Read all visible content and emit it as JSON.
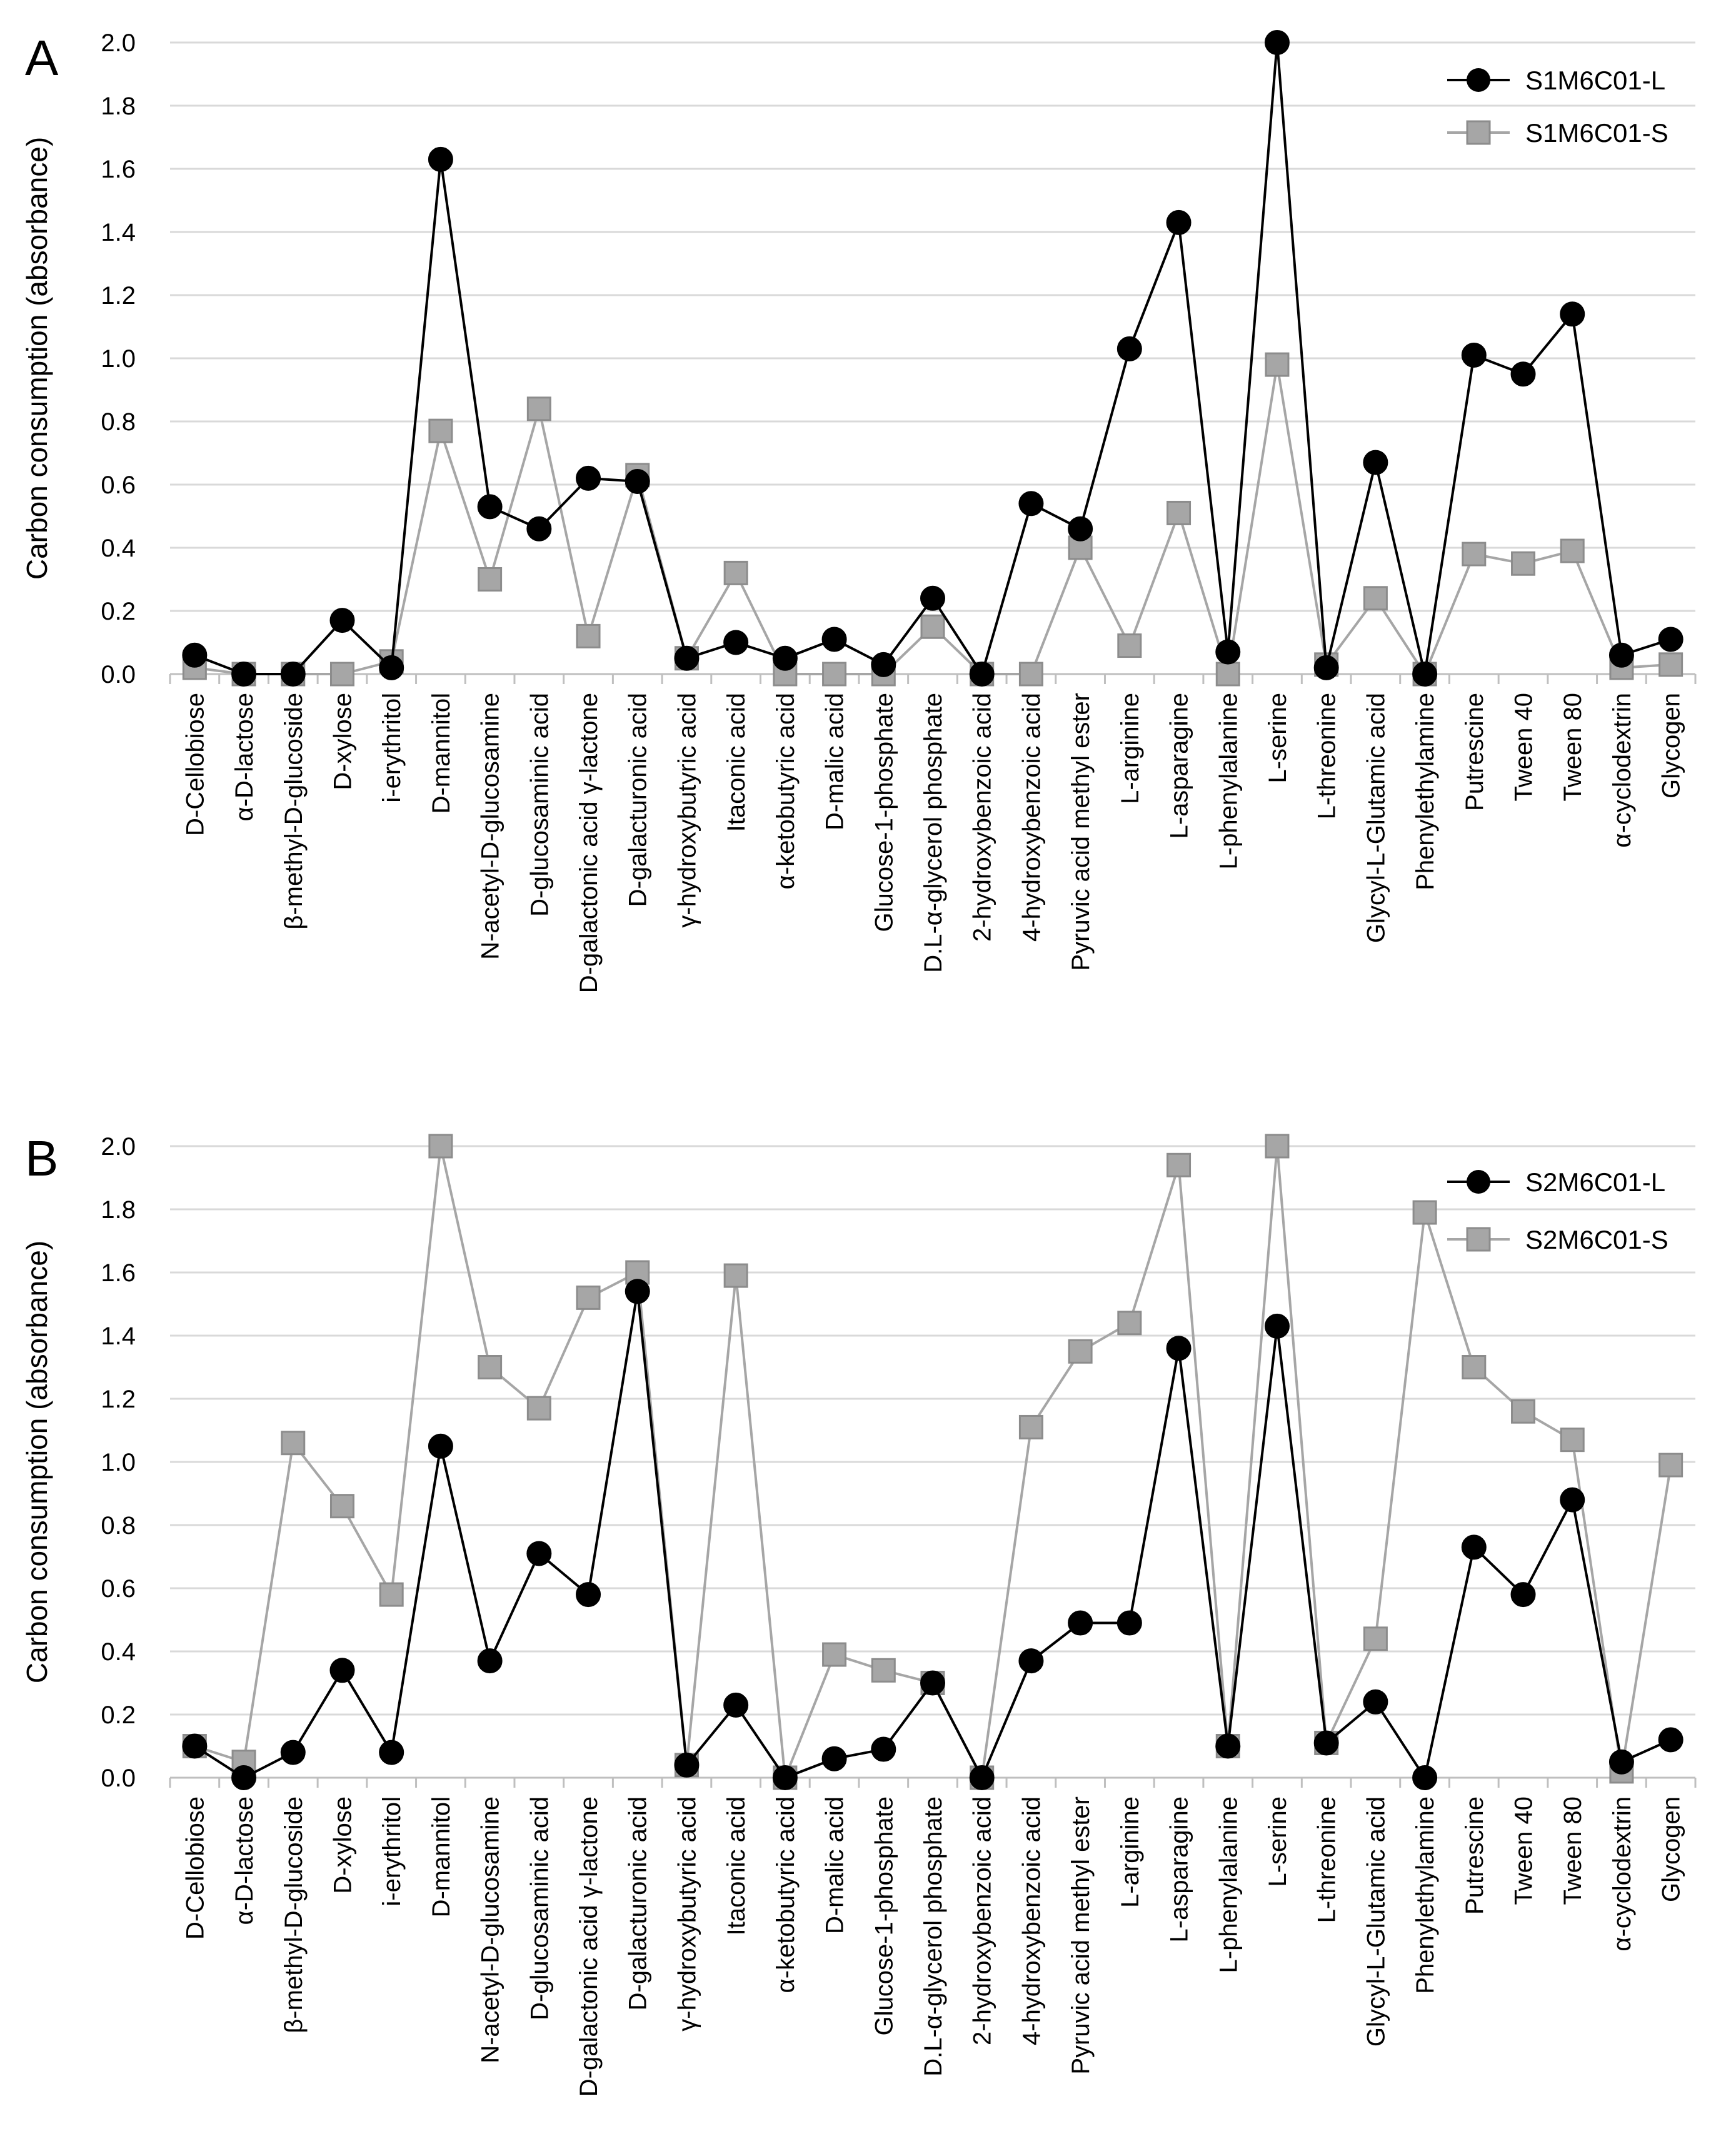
{
  "chart_data": [
    {
      "type": "line",
      "panel": "A",
      "ylabel": "Carbon consumption (absorbance)",
      "ylim": [
        0,
        2.0
      ],
      "yticks": [
        "0.0",
        "0.2",
        "0.4",
        "0.6",
        "0.8",
        "1.0",
        "1.2",
        "1.4",
        "1.6",
        "1.8",
        "2.0"
      ],
      "grid": true,
      "legend": "top-right",
      "categories": [
        "D-Cellobiose",
        "α-D-lactose",
        "β-methyl-D-glucoside",
        "D-xylose",
        "i-erythritol",
        "D-mannitol",
        "N-acetyl-D-glucosamine",
        "D-glucosaminic acid",
        "D-galactonic acid γ-lactone",
        "D-galacturonic acid",
        "γ-hydroxybutyric acid",
        "Itaconic acid",
        "α-ketobutyric acid",
        "D-malic acid",
        "Glucose-1-phosphate",
        "D.L-α-glycerol phosphate",
        "2-hydroxybenzoic acid",
        "4-hydroxybenzoic acid",
        "Pyruvic acid methyl ester",
        "L-arginine",
        "L-asparagine",
        "L-phenylalanine",
        "L-serine",
        "L-threonine",
        "Glycyl-L-Glutamic acid",
        "Phenylethylamine",
        "Putrescine",
        "Tween 40",
        "Tween 80",
        "α-cyclodextrin",
        "Glycogen"
      ],
      "series": [
        {
          "name": "S1M6C01-L",
          "color": "#000000",
          "marker": "circle",
          "values": [
            0.06,
            0.0,
            0.0,
            0.17,
            0.02,
            1.63,
            0.53,
            0.46,
            0.62,
            0.61,
            0.05,
            0.1,
            0.05,
            0.11,
            0.03,
            0.24,
            0.0,
            0.54,
            0.46,
            1.03,
            1.43,
            0.07,
            2.0,
            0.02,
            0.67,
            0.0,
            1.01,
            0.95,
            1.14,
            0.06,
            0.11
          ]
        },
        {
          "name": "S1M6C01-S",
          "color": "#a6a6a6",
          "marker": "square",
          "values": [
            0.02,
            0.0,
            0.0,
            0.0,
            0.04,
            0.77,
            0.3,
            0.84,
            0.12,
            0.63,
            0.05,
            0.32,
            0.0,
            0.0,
            0.0,
            0.15,
            0.0,
            0.0,
            0.4,
            0.09,
            0.51,
            0.0,
            0.98,
            0.03,
            0.24,
            0.0,
            0.38,
            0.35,
            0.39,
            0.02,
            0.03
          ]
        }
      ]
    },
    {
      "type": "line",
      "panel": "B",
      "ylabel": "Carbon consumption (absorbance)",
      "ylim": [
        0,
        2.0
      ],
      "yticks": [
        "0.0",
        "0.2",
        "0.4",
        "0.6",
        "0.8",
        "1.0",
        "1.2",
        "1.4",
        "1.6",
        "1.8",
        "2.0"
      ],
      "grid": true,
      "legend": "top-right",
      "categories": [
        "D-Cellobiose",
        "α-D-lactose",
        "β-methyl-D-glucoside",
        "D-xylose",
        "i-erythritol",
        "D-mannitol",
        "N-acetyl-D-glucosamine",
        "D-glucosaminic acid",
        "D-galactonic acid γ-lactone",
        "D-galacturonic acid",
        "γ-hydroxybutyric acid",
        "Itaconic acid",
        "α-ketobutyric acid",
        "D-malic acid",
        "Glucose-1-phosphate",
        "D.L-α-glycerol phosphate",
        "2-hydroxybenzoic acid",
        "4-hydroxybenzoic acid",
        "Pyruvic acid methyl ester",
        "L-arginine",
        "L-asparagine",
        "L-phenylalanine",
        "L-serine",
        "L-threonine",
        "Glycyl-L-Glutamic acid",
        "Phenylethylamine",
        "Putrescine",
        "Tween 40",
        "Tween 80",
        "α-cyclodextrin",
        "Glycogen"
      ],
      "series": [
        {
          "name": "S2M6C01-L",
          "color": "#000000",
          "marker": "circle",
          "values": [
            0.1,
            0.0,
            0.08,
            0.34,
            0.08,
            1.05,
            0.37,
            0.71,
            0.58,
            1.54,
            0.04,
            0.23,
            0.0,
            0.06,
            0.09,
            0.3,
            0.0,
            0.37,
            0.49,
            0.49,
            1.36,
            0.1,
            1.43,
            0.11,
            0.24,
            0.0,
            0.73,
            0.58,
            0.88,
            0.05,
            0.12
          ]
        },
        {
          "name": "S2M6C01-S",
          "color": "#a6a6a6",
          "marker": "square",
          "values": [
            0.1,
            0.05,
            1.06,
            0.86,
            0.58,
            2.0,
            1.3,
            1.17,
            1.52,
            1.6,
            0.04,
            1.59,
            0.0,
            0.39,
            0.34,
            0.3,
            0.0,
            1.11,
            1.35,
            1.44,
            1.94,
            0.1,
            2.0,
            0.11,
            0.44,
            1.79,
            1.3,
            1.16,
            1.07,
            0.02,
            0.99
          ]
        }
      ]
    }
  ]
}
